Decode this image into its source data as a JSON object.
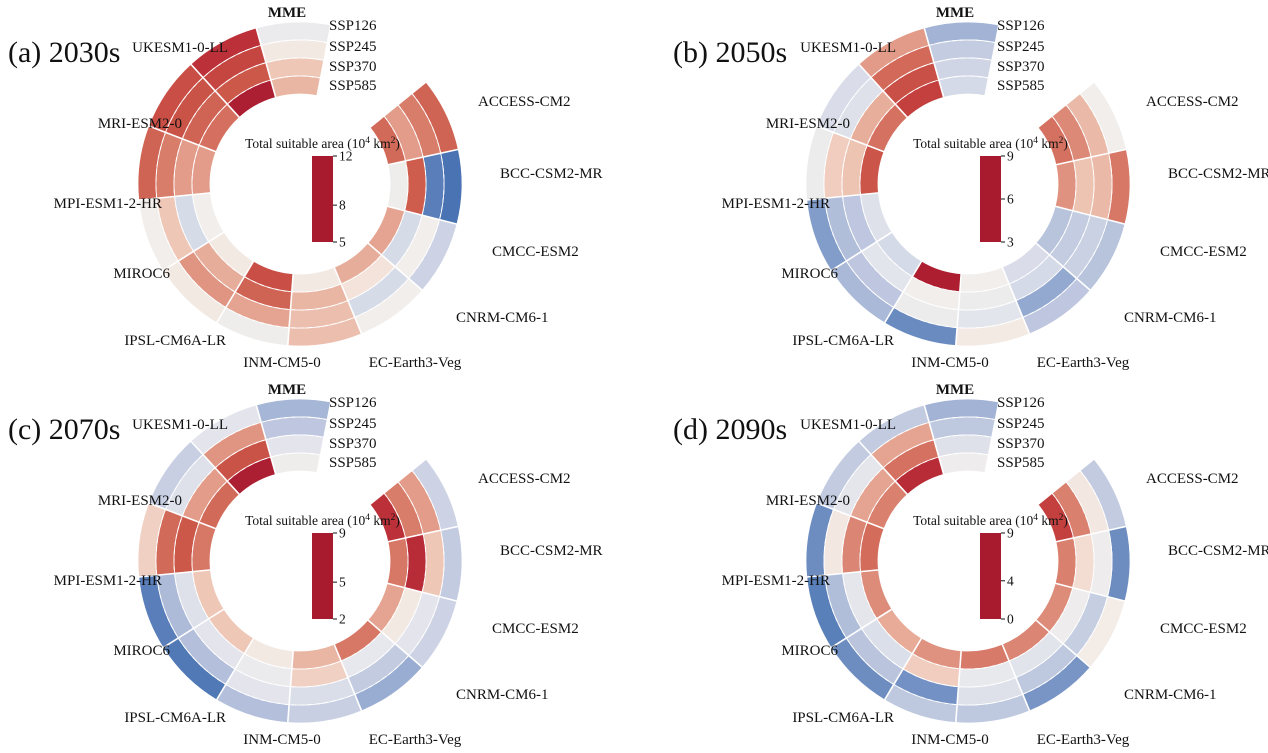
{
  "figure": {
    "background": "#ffffff",
    "ring_labels": [
      "SSP126",
      "SSP245",
      "SSP370",
      "SSP585"
    ],
    "colorbar_title": "Total suitable area (10⁴ km²)",
    "value_units": "10⁴ km²",
    "colormap_stops": [
      [
        0.0,
        "#a81a2e"
      ],
      [
        0.07,
        "#b32335"
      ],
      [
        0.15,
        "#c13b3c"
      ],
      [
        0.25,
        "#cd5a4b"
      ],
      [
        0.33,
        "#d97e6c"
      ],
      [
        0.4,
        "#e5a491"
      ],
      [
        0.46,
        "#efc9b9"
      ],
      [
        0.5,
        "#f4e3da"
      ],
      [
        0.53,
        "#f2efec"
      ],
      [
        0.57,
        "#e7e8ed"
      ],
      [
        0.64,
        "#d3d8e7"
      ],
      [
        0.72,
        "#b7c2dc"
      ],
      [
        0.8,
        "#93a9d0"
      ],
      [
        0.88,
        "#6c8cc1"
      ],
      [
        0.94,
        "#4a74b4"
      ],
      [
        1.0,
        "#2c62a9"
      ]
    ]
  },
  "chart_data": [
    {
      "type": "heatmap",
      "subtype": "circular-ring-heatmap",
      "panel_label": "(a) 2030s",
      "period": "2030s",
      "colorbar": {
        "title": "Total suitable area (10⁴ km²)",
        "ticks": [
          12,
          8,
          5
        ],
        "vmin": 5,
        "vmax": 12
      },
      "rings": [
        "SSP126",
        "SSP245",
        "SSP370",
        "SSP585"
      ],
      "series": [
        {
          "name": "ACCESS-CM2",
          "values": [
            6.9,
            7.3,
            7.7,
            7.0
          ]
        },
        {
          "name": "BCC-CSM2-MR",
          "values": [
            11.6,
            11.4,
            6.8,
            8.8
          ]
        },
        {
          "name": "CMCC-ESM2",
          "values": [
            9.6,
            8.7,
            9.4,
            7.8
          ]
        },
        {
          "name": "CNRM-CM6-1",
          "values": [
            8.7,
            9.4,
            8.5,
            7.9
          ]
        },
        {
          "name": "EC-Earth3-Veg",
          "values": [
            8.1,
            8.1,
            8.0,
            8.6
          ]
        },
        {
          "name": "INM-CM5-0",
          "values": [
            8.8,
            7.8,
            6.9,
            6.5
          ]
        },
        {
          "name": "IPSL-CM6A-LR",
          "values": [
            8.6,
            7.6,
            7.9,
            8.6
          ]
        },
        {
          "name": "MIROC6",
          "values": [
            8.7,
            8.2,
            9.4,
            8.7
          ]
        },
        {
          "name": "MPI-ESM1-2-HR",
          "values": [
            6.9,
            7.3,
            7.7,
            7.7
          ]
        },
        {
          "name": "MRI-ESM2-0",
          "values": [
            6.5,
            6.6,
            6.9,
            7.1
          ]
        },
        {
          "name": "UKESM1-0-LL",
          "values": [
            5.8,
            6.3,
            6.7,
            5.2
          ]
        },
        {
          "name": "MME",
          "values": [
            8.9,
            8.6,
            8.2,
            8.0
          ]
        }
      ]
    },
    {
      "type": "heatmap",
      "subtype": "circular-ring-heatmap",
      "panel_label": "(b) 2050s",
      "period": "2050s",
      "colorbar": {
        "title": "Total suitable area (10⁴ km²)",
        "ticks": [
          9,
          6,
          3
        ],
        "vmin": 3,
        "vmax": 9
      },
      "rings": [
        "SSP126",
        "SSP245",
        "SSP370",
        "SSP585"
      ],
      "series": [
        {
          "name": "ACCESS-CM2",
          "values": [
            6.2,
            5.6,
            5.1,
            4.8
          ]
        },
        {
          "name": "BCC-CSM2-MR",
          "values": [
            4.9,
            5.6,
            5.7,
            5.2
          ]
        },
        {
          "name": "CMCC-ESM2",
          "values": [
            7.3,
            7.0,
            7.1,
            7.3
          ]
        },
        {
          "name": "CNRM-CM6-1",
          "values": [
            7.2,
            7.8,
            6.8,
            6.7
          ]
        },
        {
          "name": "EC-Earth3-Veg",
          "values": [
            6.1,
            6.5,
            6.3,
            6.2
          ]
        },
        {
          "name": "INM-CM5-0",
          "values": [
            8.3,
            6.3,
            6.2,
            3.2
          ]
        },
        {
          "name": "IPSL-CM6A-LR",
          "values": [
            7.5,
            7.2,
            6.5,
            6.8
          ]
        },
        {
          "name": "MIROC6",
          "values": [
            8.0,
            7.4,
            7.2,
            6.6
          ]
        },
        {
          "name": "MPI-ESM1-2-HR",
          "values": [
            6.3,
            5.8,
            5.7,
            4.4
          ]
        },
        {
          "name": "MRI-ESM2-0",
          "values": [
            6.7,
            6.6,
            5.5,
            4.8
          ]
        },
        {
          "name": "UKESM1-0-LL",
          "values": [
            5.3,
            4.7,
            4.3,
            4.0
          ]
        },
        {
          "name": "MME",
          "values": [
            7.6,
            7.1,
            6.9,
            6.8
          ]
        }
      ]
    },
    {
      "type": "heatmap",
      "subtype": "circular-ring-heatmap",
      "panel_label": "(c) 2070s",
      "period": "2070s",
      "colorbar": {
        "title": "Total suitable area (10⁴ km²)",
        "ticks": [
          9,
          5,
          2
        ],
        "vmin": 2,
        "vmax": 9
      },
      "rings": [
        "SSP126",
        "SSP245",
        "SSP370",
        "SSP585"
      ],
      "series": [
        {
          "name": "ACCESS-CM2",
          "values": [
            6.6,
            4.7,
            4.3,
            2.8
          ]
        },
        {
          "name": "BCC-CSM2-MR",
          "values": [
            6.8,
            5.2,
            2.7,
            4.2
          ]
        },
        {
          "name": "CMCC-ESM2",
          "values": [
            6.6,
            6.1,
            5.6,
            4.8
          ]
        },
        {
          "name": "CNRM-CM6-1",
          "values": [
            7.5,
            6.8,
            6.0,
            4.2
          ]
        },
        {
          "name": "EC-Earth3-Veg",
          "values": [
            6.7,
            6.3,
            5.3,
            5.0
          ]
        },
        {
          "name": "INM-CM5-0",
          "values": [
            7.1,
            6.1,
            5.9,
            5.6
          ]
        },
        {
          "name": "IPSL-CM6A-LR",
          "values": [
            8.5,
            7.1,
            6.1,
            5.2
          ]
        },
        {
          "name": "MIROC6",
          "values": [
            8.4,
            7.2,
            6.2,
            5.2
          ]
        },
        {
          "name": "MPI-ESM1-2-HR",
          "values": [
            5.3,
            4.0,
            3.7,
            4.2
          ]
        },
        {
          "name": "MRI-ESM2-0",
          "values": [
            6.7,
            6.2,
            4.7,
            4.0
          ]
        },
        {
          "name": "UKESM1-0-LL",
          "values": [
            6.1,
            4.6,
            3.6,
            2.2
          ]
        },
        {
          "name": "MME",
          "values": [
            7.3,
            6.9,
            6.1,
            5.8
          ]
        }
      ]
    },
    {
      "type": "heatmap",
      "subtype": "circular-ring-heatmap",
      "panel_label": "(d) 2090s",
      "period": "2090s",
      "colorbar": {
        "title": "Total suitable area (10⁴ km²)",
        "ticks": [
          9,
          4,
          0
        ],
        "vmin": 0,
        "vmax": 9
      },
      "rings": [
        "SSP126",
        "SSP245",
        "SSP370",
        "SSP585"
      ],
      "series": [
        {
          "name": "ACCESS-CM2",
          "values": [
            6.2,
            4.6,
            3.0,
            1.5
          ]
        },
        {
          "name": "BCC-CSM2-MR",
          "values": [
            7.9,
            4.9,
            4.4,
            3.0
          ]
        },
        {
          "name": "CMCC-ESM2",
          "values": [
            4.7,
            6.1,
            4.9,
            3.2
          ]
        },
        {
          "name": "CNRM-CM6-1",
          "values": [
            7.7,
            6.3,
            5.3,
            3.1
          ]
        },
        {
          "name": "EC-Earth3-Veg",
          "values": [
            6.3,
            5.4,
            5.1,
            2.9
          ]
        },
        {
          "name": "INM-CM5-0",
          "values": [
            6.3,
            7.8,
            4.2,
            3.3
          ]
        },
        {
          "name": "IPSL-CM6A-LR",
          "values": [
            7.9,
            6.4,
            5.5,
            3.7
          ]
        },
        {
          "name": "MIROC6",
          "values": [
            8.2,
            6.6,
            5.2,
            3.2
          ]
        },
        {
          "name": "MPI-ESM1-2-HR",
          "values": [
            7.9,
            4.6,
            3.1,
            2.6
          ]
        },
        {
          "name": "MRI-ESM2-0",
          "values": [
            6.2,
            5.2,
            3.6,
            3.0
          ]
        },
        {
          "name": "UKESM1-0-LL",
          "values": [
            6.2,
            3.6,
            2.7,
            0.9
          ]
        },
        {
          "name": "MME",
          "values": [
            6.9,
            6.3,
            5.4,
            4.9
          ]
        }
      ]
    }
  ]
}
